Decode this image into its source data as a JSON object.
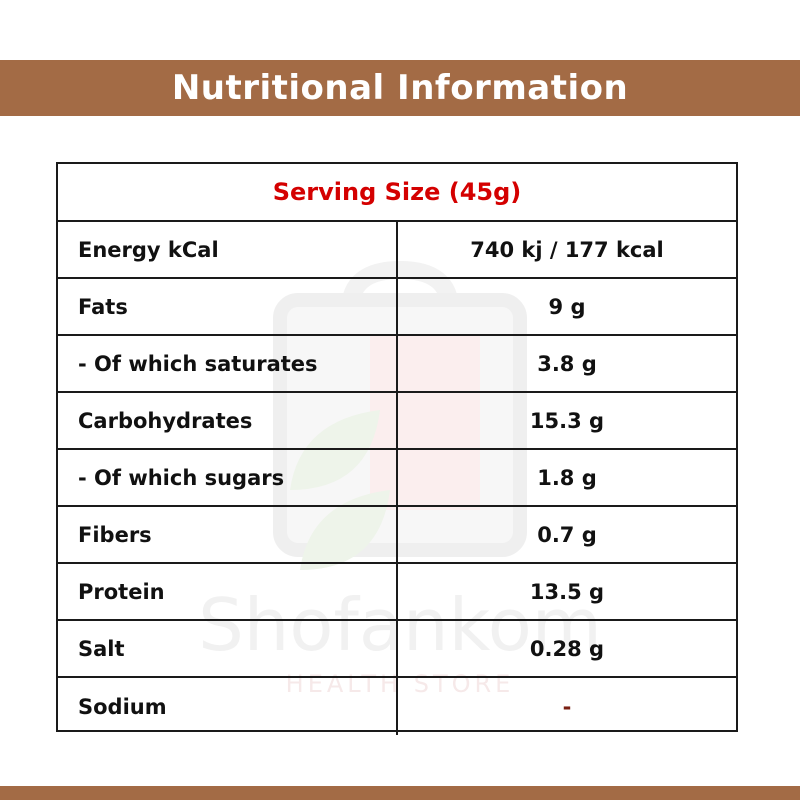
{
  "header": {
    "title": "Nutritional Information"
  },
  "table": {
    "serving_size": "Serving Size (45g)",
    "rows": [
      {
        "label": "Energy kCal",
        "value": "740 kj / 177 kcal"
      },
      {
        "label": "Fats",
        "value": "9 g"
      },
      {
        "label": "- Of which saturates",
        "value": "3.8 g"
      },
      {
        "label": "Carbohydrates",
        "value": "15.3 g"
      },
      {
        "label": "- Of which sugars",
        "value": "1.8 g"
      },
      {
        "label": "Fibers",
        "value": "0.7 g"
      },
      {
        "label": "Protein",
        "value": "13.5 g"
      },
      {
        "label": "Salt",
        "value": "0.28 g"
      },
      {
        "label": "Sodium",
        "value": "-"
      }
    ]
  },
  "watermark": {
    "brand": "Shofankom",
    "tagline": "HEALTH STORE"
  },
  "colors": {
    "band": "#a36b45",
    "serving_text": "#d40000",
    "border": "#1a1a1a"
  }
}
